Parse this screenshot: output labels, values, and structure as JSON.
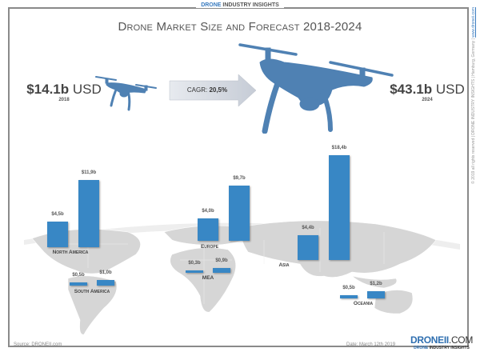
{
  "header": {
    "brand_a": "DRONE",
    "brand_b": " INDUSTRY INSIGHTS"
  },
  "title": "Drone Market Size and Forecast 2018-2024",
  "side_text": {
    "main": "© 2019 all rights reserved | DRONE INDUSTRY INSIGHTS | Hamburg, Germany | ",
    "url": "www.droneii.com"
  },
  "left": {
    "value": "$14.1b",
    "unit": " USD",
    "year": "2018"
  },
  "right": {
    "value": "$43.1b",
    "unit": " USD",
    "year": "2024"
  },
  "cagr": {
    "label": "CAGR: ",
    "value": "20,5%"
  },
  "icons": [
    "drone-small-icon",
    "drone-large-icon",
    "growth-arrow-icon",
    "world-map"
  ],
  "colors": {
    "bar": "#3887c5",
    "map": "#d6d6d6",
    "brand": "#2f6fb0"
  },
  "chart_data": {
    "type": "bar",
    "categories": [
      "North America",
      "South America",
      "Europe",
      "MEA",
      "Asia",
      "Oceania"
    ],
    "series": [
      {
        "values": [
          4.5,
          0.5,
          4.0,
          0.3,
          4.4,
          0.5
        ],
        "labels": [
          "$4,5b",
          "$0,5b",
          "$4,0b",
          "$0,3b",
          "$4,4b",
          "$0,5b"
        ]
      },
      {
        "values": [
          11.9,
          1.0,
          9.7,
          0.9,
          18.4,
          1.2
        ],
        "labels": [
          "$11,9b",
          "$1,0b",
          "$9,7b",
          "$0,9b",
          "$18,4b",
          "$1,2b"
        ]
      }
    ],
    "unit": "billion USD",
    "grid": false
  },
  "footer": {
    "source": "Source: DRONEII.com",
    "date": "Date: March 12th 2019",
    "logo_main": "DRONEII",
    "logo_suffix": ".COM",
    "logo_sub_a": "DRONE",
    "logo_sub_b": " INDUSTRY INSIGHTS"
  }
}
